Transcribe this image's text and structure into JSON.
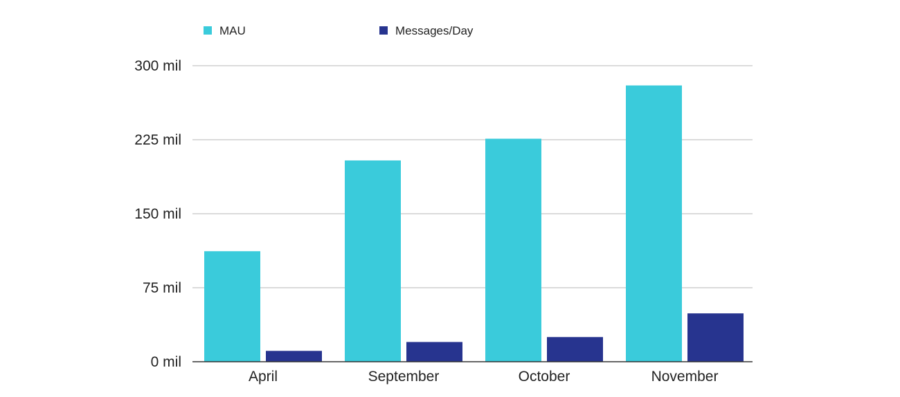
{
  "chart_data": {
    "type": "bar",
    "categories": [
      "April",
      "September",
      "October",
      "November"
    ],
    "series": [
      {
        "name": "MAU",
        "color": "#3ACBDB",
        "values": [
          112,
          204,
          226,
          280
        ]
      },
      {
        "name": "Messages/Day",
        "color": "#27348F",
        "values": [
          11,
          20,
          25,
          49
        ]
      }
    ],
    "yticks": [
      0,
      75,
      150,
      225,
      300
    ],
    "ytick_labels": [
      "0 mil",
      "75 mil",
      "150 mil",
      "225 mil",
      "300 mil"
    ],
    "ylim": [
      0,
      300
    ],
    "unit": "mil",
    "grid": true,
    "legend_position": "top-left",
    "title": "",
    "xlabel": "",
    "ylabel": ""
  }
}
